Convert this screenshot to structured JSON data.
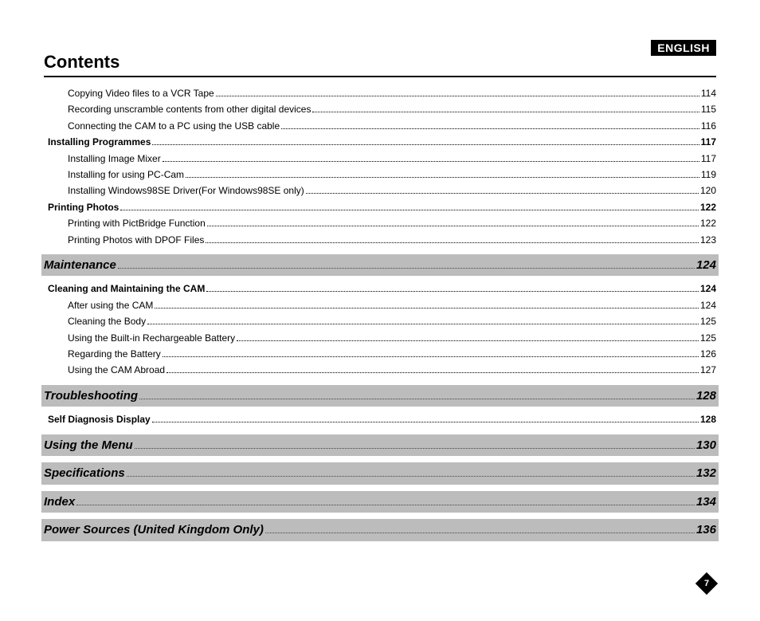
{
  "lang_badge": "ENGLISH",
  "title": "Contents",
  "page_number": "7",
  "sections": [
    {
      "band": null,
      "items": [
        {
          "indent": "sub",
          "label": "Copying Video files to a VCR Tape",
          "page": "114",
          "bold": false
        },
        {
          "indent": "sub",
          "label": "Recording unscramble contents from other digital devices",
          "page": "115",
          "bold": false
        },
        {
          "indent": "sub",
          "label": "Connecting the CAM to a PC using the USB cable",
          "page": "116",
          "bold": false
        },
        {
          "indent": "sec",
          "label": "Installing Programmes",
          "page": "117",
          "bold": true
        },
        {
          "indent": "sub",
          "label": "Installing Image Mixer",
          "page": "117",
          "bold": false
        },
        {
          "indent": "sub",
          "label": "Installing for using PC-Cam",
          "page": "119",
          "bold": false
        },
        {
          "indent": "sub",
          "label": "Installing Windows98SE Driver(For Windows98SE only)",
          "page": "120",
          "bold": false
        },
        {
          "indent": "sec",
          "label": "Printing Photos",
          "page": "122",
          "bold": true
        },
        {
          "indent": "sub",
          "label": "Printing with PictBridge Function",
          "page": "122",
          "bold": false
        },
        {
          "indent": "sub",
          "label": "Printing Photos with DPOF Files",
          "page": "123",
          "bold": false
        }
      ]
    },
    {
      "band": {
        "label": "Maintenance",
        "page": "124"
      },
      "items": [
        {
          "indent": "sec",
          "label": "Cleaning and Maintaining the CAM",
          "page": "124",
          "bold": true
        },
        {
          "indent": "sub",
          "label": "After using the CAM",
          "page": "124",
          "bold": false
        },
        {
          "indent": "sub",
          "label": "Cleaning the Body",
          "page": "125",
          "bold": false
        },
        {
          "indent": "sub",
          "label": "Using the Built-in Rechargeable Battery",
          "page": "125",
          "bold": false
        },
        {
          "indent": "sub",
          "label": "Regarding the Battery",
          "page": "126",
          "bold": false
        },
        {
          "indent": "sub",
          "label": "Using the CAM Abroad",
          "page": "127",
          "bold": false
        }
      ]
    },
    {
      "band": {
        "label": "Troubleshooting",
        "page": "128"
      },
      "items": [
        {
          "indent": "sec",
          "label": "Self Diagnosis Display",
          "page": "128",
          "bold": true
        }
      ]
    },
    {
      "band": {
        "label": "Using the Menu",
        "page": "130"
      },
      "items": []
    },
    {
      "band": {
        "label": "Specifications",
        "page": "132"
      },
      "items": []
    },
    {
      "band": {
        "label": "Index",
        "page": "134"
      },
      "items": []
    },
    {
      "band": {
        "label": "Power Sources (United Kingdom Only)",
        "page": "136"
      },
      "items": []
    }
  ]
}
